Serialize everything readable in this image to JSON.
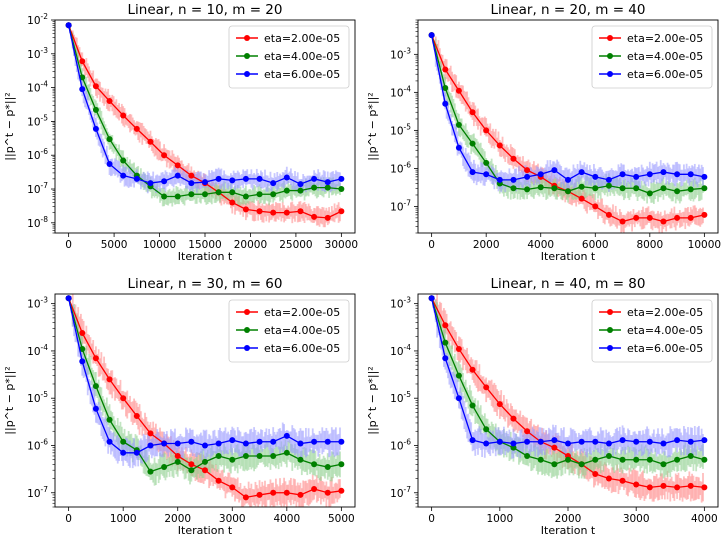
{
  "figure": {
    "background": "#ffffff"
  },
  "series_styles": [
    {
      "color": "#ff0000",
      "band": "#ff8888"
    },
    {
      "color": "#008000",
      "band": "#8fd08f"
    },
    {
      "color": "#0000ff",
      "band": "#9a9aff"
    }
  ],
  "chart_data": [
    {
      "type": "line",
      "title": "Linear, n = 10, m = 20",
      "xlabel": "Iteration t",
      "ylabel": "||p^t − p*||²",
      "yscale": "log",
      "xlim": [
        -1500,
        31500
      ],
      "ylim": [
        5e-09,
        0.01
      ],
      "xticks": [
        0,
        5000,
        10000,
        15000,
        20000,
        25000,
        30000
      ],
      "yticks": [
        {
          "value": 0.01,
          "label": "10",
          "exp": "-2"
        },
        {
          "value": 0.001,
          "label": "10",
          "exp": "-3"
        },
        {
          "value": 0.0001,
          "label": "10",
          "exp": "-4"
        },
        {
          "value": 1e-05,
          "label": "10",
          "exp": "-5"
        },
        {
          "value": 1e-06,
          "label": "10",
          "exp": "-6"
        },
        {
          "value": 1e-07,
          "label": "10",
          "exp": "-7"
        },
        {
          "value": 1e-08,
          "label": "10",
          "exp": "-8"
        }
      ],
      "x": [
        0,
        1500,
        3000,
        4500,
        6000,
        7500,
        9000,
        10500,
        12000,
        13500,
        15000,
        16500,
        18000,
        19500,
        21000,
        22500,
        24000,
        25500,
        27000,
        28500,
        30000
      ],
      "series": [
        {
          "name": "eta=2.00e-05",
          "values": [
            0.007,
            0.0006,
            0.00011,
            4e-05,
            1.5e-05,
            6e-06,
            2.5e-06,
            1e-06,
            5e-07,
            2.5e-07,
            1.5e-07,
            8e-08,
            4e-08,
            2.5e-08,
            2.2e-08,
            2e-08,
            2e-08,
            2.2e-08,
            1.5e-08,
            1.4e-08,
            2.2e-08
          ]
        },
        {
          "name": "eta=4.00e-05",
          "values": [
            0.007,
            0.0002,
            2.2e-05,
            3e-06,
            7e-07,
            2.5e-07,
            1.2e-07,
            6e-08,
            6e-08,
            7e-08,
            7e-08,
            8e-08,
            8e-08,
            6e-08,
            7e-08,
            7e-08,
            9e-08,
            9e-08,
            1.1e-07,
            1.1e-07,
            1e-07
          ]
        },
        {
          "name": "eta=6.00e-05",
          "values": [
            0.007,
            9e-05,
            6e-06,
            5.5e-07,
            2.5e-07,
            2e-07,
            1.5e-07,
            1.7e-07,
            2.5e-07,
            1.5e-07,
            1.6e-07,
            2e-07,
            1.8e-07,
            2e-07,
            2e-07,
            1.5e-07,
            2.2e-07,
            1.4e-07,
            2e-07,
            1.6e-07,
            2e-07
          ]
        }
      ]
    },
    {
      "type": "line",
      "title": "Linear, n = 20, m = 40",
      "xlabel": "Iteration t",
      "ylabel": "||p^t − p*||²",
      "yscale": "log",
      "xlim": [
        -500,
        10500
      ],
      "ylim": [
        2e-08,
        0.008
      ],
      "xticks": [
        0,
        2000,
        4000,
        6000,
        8000,
        10000
      ],
      "yticks": [
        {
          "value": 0.001,
          "label": "10",
          "exp": "-3"
        },
        {
          "value": 0.0001,
          "label": "10",
          "exp": "-4"
        },
        {
          "value": 1e-05,
          "label": "10",
          "exp": "-5"
        },
        {
          "value": 1e-06,
          "label": "10",
          "exp": "-6"
        },
        {
          "value": 1e-07,
          "label": "10",
          "exp": "-7"
        }
      ],
      "x": [
        0,
        500,
        1000,
        1500,
        2000,
        2500,
        3000,
        3500,
        4000,
        4500,
        5000,
        5500,
        6000,
        6500,
        7000,
        7500,
        8000,
        8500,
        9000,
        9500,
        10000
      ],
      "series": [
        {
          "name": "eta=2.00e-05",
          "values": [
            0.0032,
            0.0004,
            0.00011,
            3e-05,
            1e-05,
            4e-06,
            1.8e-06,
            9e-07,
            6e-07,
            3.5e-07,
            2.5e-07,
            1.6e-07,
            1e-07,
            6e-08,
            4e-08,
            5e-08,
            5e-08,
            4e-08,
            5e-08,
            5e-08,
            6e-08
          ]
        },
        {
          "name": "eta=4.00e-05",
          "values": [
            0.0032,
            0.00013,
            1.4e-05,
            4.5e-06,
            1.4e-06,
            4e-07,
            3e-07,
            2.8e-07,
            3.2e-07,
            3e-07,
            2.5e-07,
            3.3e-07,
            3e-07,
            3.5e-07,
            3e-07,
            3e-07,
            2.2e-07,
            3e-07,
            2.5e-07,
            2.8e-07,
            3e-07
          ]
        },
        {
          "name": "eta=6.00e-05",
          "values": [
            0.0032,
            5e-05,
            3.5e-06,
            8e-07,
            7e-07,
            5e-07,
            5e-07,
            6e-07,
            7e-07,
            9e-07,
            5e-07,
            8e-07,
            6e-07,
            5e-07,
            7e-07,
            6e-07,
            7e-07,
            8e-07,
            7e-07,
            7e-07,
            6e-07
          ]
        }
      ]
    },
    {
      "type": "line",
      "title": "Linear, n = 30, m = 60",
      "xlabel": "Iteration t",
      "ylabel": "||p^t − p*||²",
      "yscale": "log",
      "xlim": [
        -250,
        5250
      ],
      "ylim": [
        5e-08,
        0.0016
      ],
      "xticks": [
        0,
        1000,
        2000,
        3000,
        4000,
        5000
      ],
      "yticks": [
        {
          "value": 0.001,
          "label": "10",
          "exp": "-3"
        },
        {
          "value": 0.0001,
          "label": "10",
          "exp": "-4"
        },
        {
          "value": 1e-05,
          "label": "10",
          "exp": "-5"
        },
        {
          "value": 1e-06,
          "label": "10",
          "exp": "-6"
        },
        {
          "value": 1e-07,
          "label": "10",
          "exp": "-7"
        }
      ],
      "x": [
        0,
        250,
        500,
        750,
        1000,
        1250,
        1500,
        1750,
        2000,
        2250,
        2500,
        2750,
        3000,
        3250,
        3500,
        3750,
        4000,
        4250,
        4500,
        4750,
        5000
      ],
      "series": [
        {
          "name": "eta=2.00e-05",
          "values": [
            0.0013,
            0.00024,
            7e-05,
            2.5e-05,
            1e-05,
            4.2e-06,
            1.8e-06,
            1.1e-06,
            6e-07,
            4e-07,
            3e-07,
            1.8e-07,
            1.3e-07,
            8e-08,
            9e-08,
            1e-07,
            1e-07,
            9e-08,
            1.2e-07,
            1e-07,
            1.1e-07
          ]
        },
        {
          "name": "eta=4.00e-05",
          "values": [
            0.0013,
            0.00011,
            1.8e-05,
            3.5e-06,
            1.2e-06,
            8e-07,
            2.8e-07,
            3.5e-07,
            4.5e-07,
            3e-07,
            4.5e-07,
            6e-07,
            5e-07,
            6e-07,
            6e-07,
            6e-07,
            7e-07,
            5e-07,
            4e-07,
            3.5e-07,
            4e-07
          ]
        },
        {
          "name": "eta=6.00e-05",
          "values": [
            0.0013,
            6e-05,
            6e-06,
            1.2e-06,
            7e-07,
            7e-07,
            1e-06,
            1.1e-06,
            1.1e-06,
            1.2e-06,
            1e-06,
            1.1e-06,
            1.3e-06,
            1.1e-06,
            1.2e-06,
            1.2e-06,
            1.6e-06,
            1.1e-06,
            1.2e-06,
            1.2e-06,
            1.2e-06
          ]
        }
      ]
    },
    {
      "type": "line",
      "title": "Linear, n = 40, m = 80",
      "xlabel": "Iteration t",
      "ylabel": "||p^t − p*||²",
      "yscale": "log",
      "xlim": [
        -200,
        4200
      ],
      "ylim": [
        5e-08,
        0.0016
      ],
      "xticks": [
        0,
        1000,
        2000,
        3000,
        4000
      ],
      "yticks": [
        {
          "value": 0.001,
          "label": "10",
          "exp": "-3"
        },
        {
          "value": 0.0001,
          "label": "10",
          "exp": "-4"
        },
        {
          "value": 1e-05,
          "label": "10",
          "exp": "-5"
        },
        {
          "value": 1e-06,
          "label": "10",
          "exp": "-6"
        },
        {
          "value": 1e-07,
          "label": "10",
          "exp": "-7"
        }
      ],
      "x": [
        0,
        200,
        400,
        600,
        800,
        1000,
        1200,
        1400,
        1600,
        1800,
        2000,
        2200,
        2400,
        2600,
        2800,
        3000,
        3200,
        3400,
        3600,
        3800,
        4000
      ],
      "series": [
        {
          "name": "eta=2.00e-05",
          "values": [
            0.0013,
            0.00035,
            0.00011,
            4e-05,
            1.7e-05,
            7.5e-06,
            3.7e-06,
            2e-06,
            1.2e-06,
            9e-07,
            6e-07,
            4e-07,
            2.5e-07,
            2e-07,
            1.8e-07,
            1.5e-07,
            1.3e-07,
            1.4e-07,
            1.3e-07,
            1.4e-07,
            1.3e-07
          ]
        },
        {
          "name": "eta=4.00e-05",
          "values": [
            0.0013,
            0.00015,
            3e-05,
            7e-06,
            2.2e-06,
            1.2e-06,
            9e-07,
            6e-07,
            5e-07,
            4e-07,
            5e-07,
            4e-07,
            5e-07,
            6e-07,
            5e-07,
            5e-07,
            5e-07,
            4e-07,
            5e-07,
            6e-07,
            5e-07
          ]
        },
        {
          "name": "eta=6.00e-05",
          "values": [
            0.0013,
            7e-05,
            1e-05,
            1.3e-06,
            1.1e-06,
            1.2e-06,
            1.1e-06,
            1.2e-06,
            1.2e-06,
            1.3e-06,
            1.1e-06,
            1.2e-06,
            1.2e-06,
            1.1e-06,
            1.3e-06,
            1.2e-06,
            1.2e-06,
            1.1e-06,
            1.3e-06,
            1.2e-06,
            1.3e-06
          ]
        }
      ]
    }
  ]
}
